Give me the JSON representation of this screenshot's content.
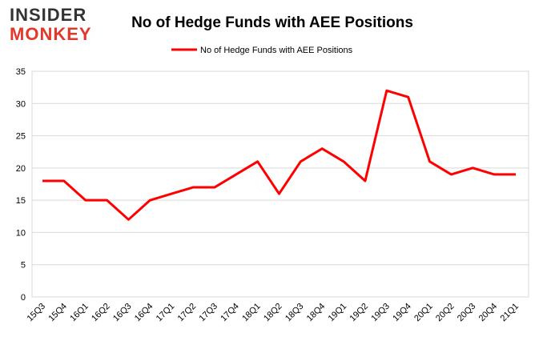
{
  "logo": {
    "line1": "INSIDER",
    "line2": "MONKEY"
  },
  "chart_data": {
    "type": "line",
    "title": "No of Hedge Funds with AEE Positions",
    "categories": [
      "15Q3",
      "15Q4",
      "16Q1",
      "16Q2",
      "16Q3",
      "16Q4",
      "17Q1",
      "17Q2",
      "17Q3",
      "17Q4",
      "18Q1",
      "18Q2",
      "18Q3",
      "18Q4",
      "19Q1",
      "19Q2",
      "19Q3",
      "19Q4",
      "20Q1",
      "20Q2",
      "20Q3",
      "20Q4",
      "21Q1"
    ],
    "series": [
      {
        "name": "No of Hedge Funds with AEE Positions",
        "color": "#ff0000",
        "values": [
          18,
          18,
          15,
          15,
          12,
          15,
          16,
          17,
          17,
          19,
          21,
          16,
          21,
          23,
          21,
          18,
          32,
          31,
          21,
          19,
          20,
          19,
          19
        ]
      }
    ],
    "ylim": [
      0,
      35
    ],
    "yticks": [
      0,
      5,
      10,
      15,
      20,
      25,
      30,
      35
    ],
    "grid": true,
    "legend": "top"
  }
}
